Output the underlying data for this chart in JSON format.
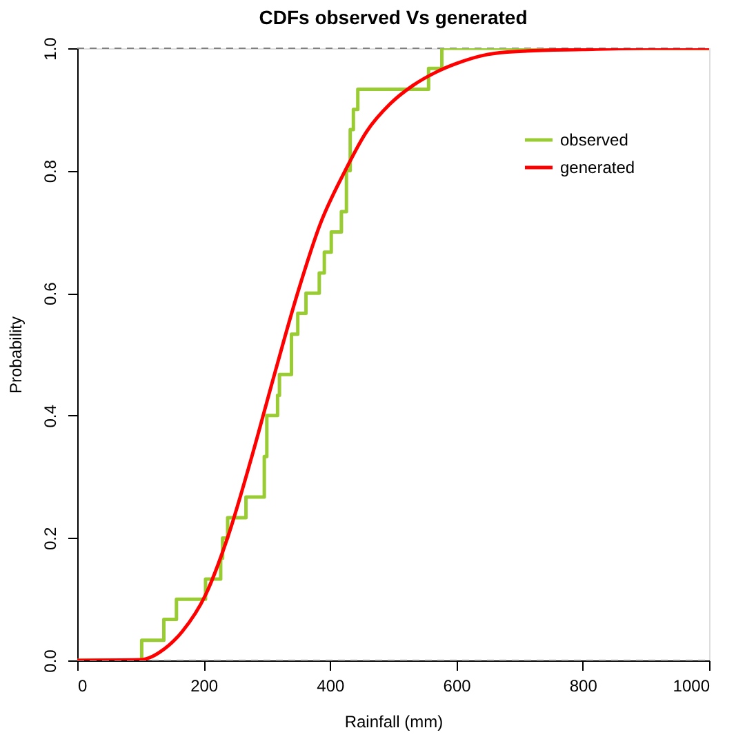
{
  "chart_data": {
    "type": "line",
    "title": "CDFs observed Vs generated",
    "xlabel": "Rainfall (mm)",
    "ylabel": "Probability",
    "xlim": [
      0,
      1000
    ],
    "xticks": [
      0,
      200,
      400,
      600,
      800,
      {
        "value": 1000,
        "label": "1000"
      }
    ],
    "ylim": [
      0,
      1
    ],
    "yticks": [
      {
        "value": 0,
        "label": "0.0"
      },
      0.2,
      0.4,
      0.6,
      0.8,
      {
        "value": 1,
        "label": "1.0"
      }
    ],
    "grid": false,
    "legend": "top right",
    "marker": "none",
    "ref_lines": [
      {
        "axis": "y",
        "value": 0,
        "label": null,
        "color": "#808080",
        "line_style": "dashed"
      },
      {
        "axis": "y",
        "value": 1,
        "label": null,
        "color": "#808080",
        "line_style": "dashed"
      }
    ],
    "series": [
      {
        "name": "observed",
        "type": "step",
        "color": "#99cc33",
        "line_style": "solid",
        "x": [
          0,
          102,
          137,
          157,
          203,
          227,
          230,
          238,
          267,
          296,
          300,
          317,
          320,
          339,
          349,
          362,
          383,
          391,
          402,
          418,
          426,
          432,
          437,
          444,
          556,
          577,
          1000
        ],
        "values": [
          0,
          0.033,
          0.067,
          0.1,
          0.133,
          0.167,
          0.2,
          0.233,
          0.267,
          0.333,
          0.4,
          0.433,
          0.467,
          0.533,
          0.567,
          0.6,
          0.633,
          0.667,
          0.7,
          0.733,
          0.8,
          0.867,
          0.9,
          0.933,
          0.967,
          1,
          1
        ]
      },
      {
        "name": "generated",
        "type": "line",
        "color": "#ff0000",
        "line_style": "solid",
        "x": [
          0,
          100,
          120,
          130,
          166,
          203,
          239,
          276,
          312,
          349,
          385,
          422,
          458,
          495,
          531,
          568,
          600,
          650,
          700,
          800,
          900,
          1000
        ],
        "values": [
          0,
          0.001,
          0.007,
          0.013,
          0.047,
          0.107,
          0.204,
          0.332,
          0.467,
          0.601,
          0.714,
          0.796,
          0.864,
          0.909,
          0.939,
          0.961,
          0.975,
          0.99,
          0.995,
          0.998,
          1,
          1
        ]
      }
    ]
  }
}
